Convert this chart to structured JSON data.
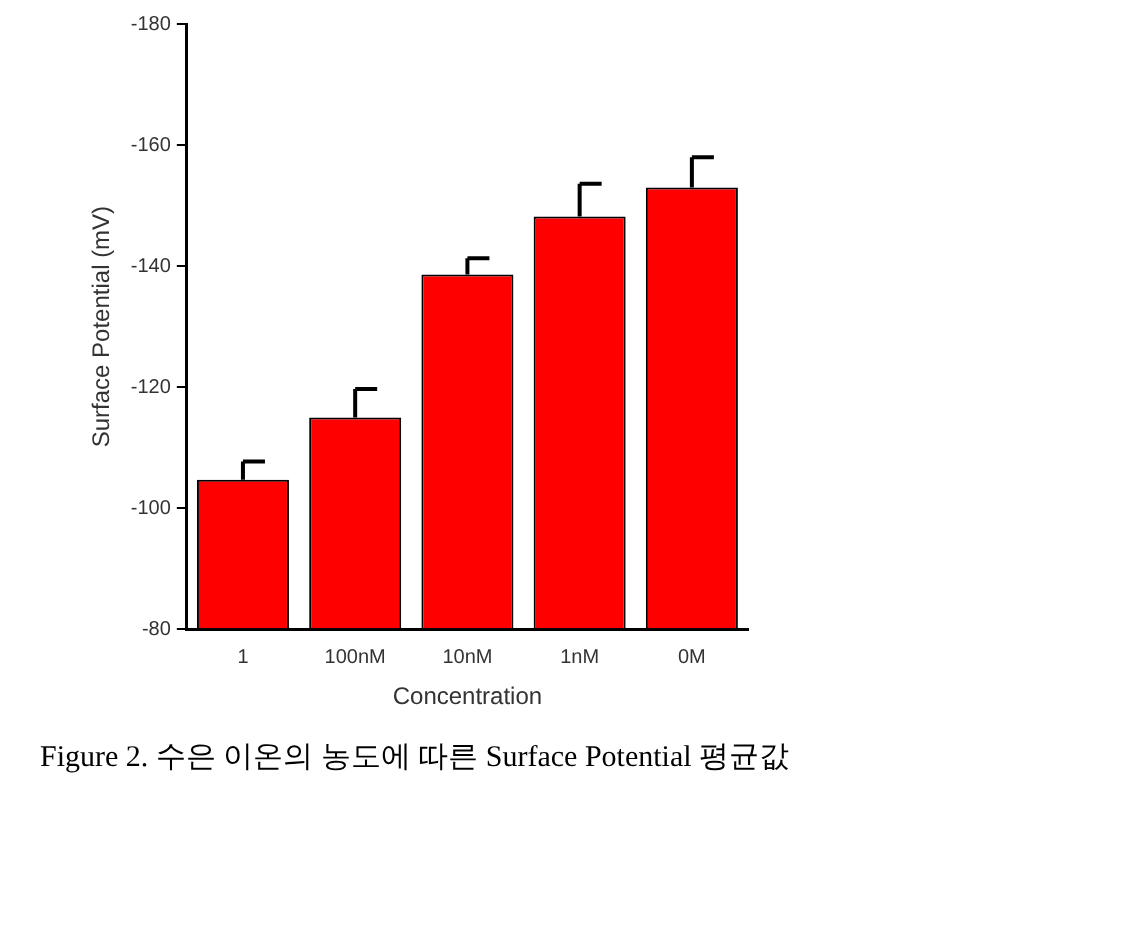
{
  "chart_data": {
    "type": "bar",
    "xlabel": "Concentration",
    "ylabel": "Surface Potential (mV)",
    "categories": [
      "1",
      "100nM",
      "10nM",
      "1nM",
      "0M"
    ],
    "values": [
      -104.7,
      -115,
      -138.6,
      -148.2,
      -153
    ],
    "errors": [
      [
        -107.7,
        -104.7
      ],
      [
        -119.7,
        -115
      ],
      [
        -141.3,
        -138.6
      ],
      [
        -153.6,
        -148.2
      ],
      [
        -158,
        -153
      ]
    ],
    "color": "#ff0000",
    "ylim": [
      -80,
      -180
    ],
    "yticks": [
      -80,
      -100,
      -120,
      -140,
      -160,
      -180
    ],
    "grid": false,
    "legend": false,
    "annotations": [
      "Figure 2. 수은 이온의 농도에 따른 Surface Potential 평균값"
    ]
  }
}
